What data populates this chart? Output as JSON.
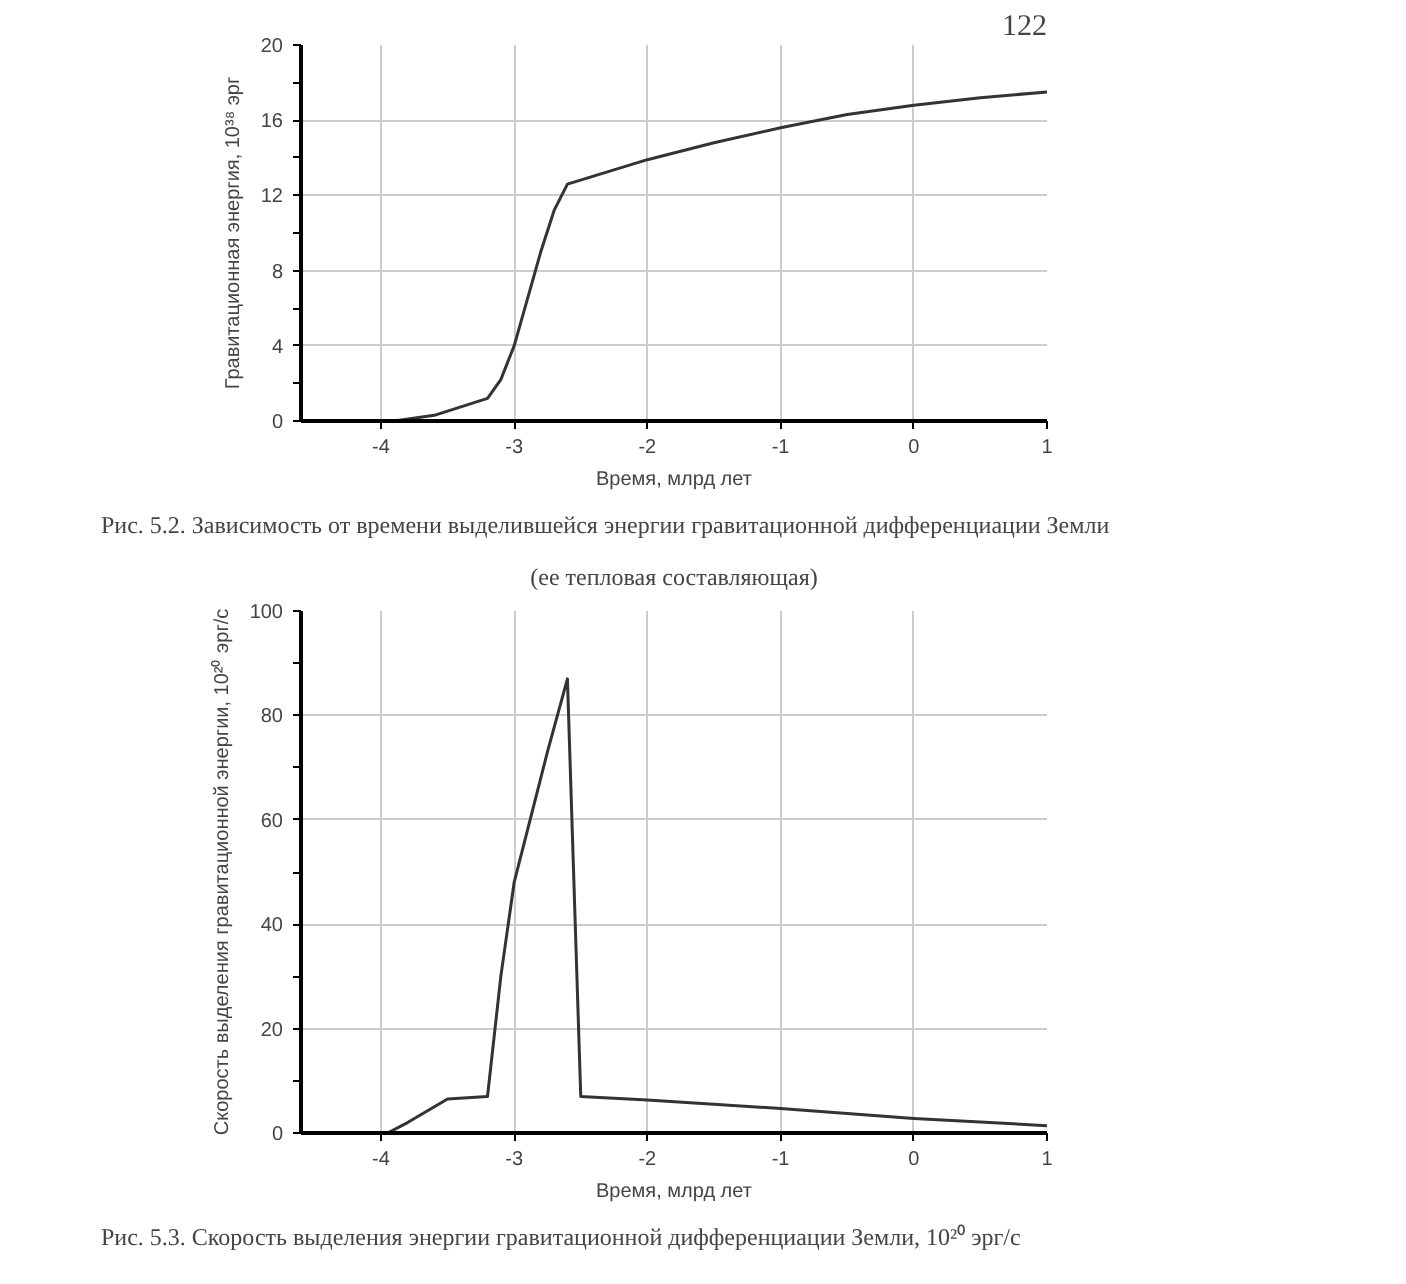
{
  "chart_data": [
    {
      "type": "line",
      "xlabel": "Время, млрд лет",
      "ylabel": "Гравитационная энергия, 10³⁸ эрг",
      "annotations": [
        "122",
        "Рис. 5.2. Зависимость от времени выделившейся энергии гравитационной дифференциации Земли",
        "(ее тепловая составляющая)"
      ],
      "x": [
        -4.0,
        -3.9,
        -3.6,
        -3.2,
        -3.1,
        -3.0,
        -2.9,
        -2.8,
        -2.7,
        -2.6,
        -2.0,
        -1.5,
        -1.0,
        -0.5,
        0.0,
        0.5,
        1.0
      ],
      "series": [
        {
          "color": "#333333",
          "values": [
            0,
            0,
            0.3,
            1.2,
            2.2,
            4,
            6.5,
            9,
            11.2,
            12.6,
            13.9,
            14.8,
            15.6,
            16.3,
            16.8,
            17.2,
            17.5
          ]
        }
      ],
      "xlim": [
        -4.6,
        1
      ],
      "xticks": [
        -4,
        -3,
        -2,
        -1,
        0,
        1
      ],
      "ylim": [
        0,
        20
      ],
      "yticks": [
        0,
        {
          "value": 2,
          "label": null
        },
        4,
        {
          "value": 6,
          "label": null
        },
        8,
        {
          "value": 10,
          "label": null
        },
        12,
        {
          "value": 14,
          "label": null
        },
        16,
        {
          "value": 18,
          "label": null
        },
        20
      ],
      "grid": true,
      "marker": "none",
      "line_style": "solid"
    },
    {
      "type": "line",
      "xlabel": "Время, млрд лет",
      "ylabel": "Скорость выделения гравитационной энергии, 10²⁰ эрг/с",
      "annotations": [
        "Рис. 5.3. Скорость выделения энергии гравитационной дифференциации Земли, 10²⁰ эрг/с"
      ],
      "x": [
        -4.0,
        -3.95,
        -3.8,
        -3.5,
        -3.2,
        -3.1,
        -3.0,
        -2.75,
        -2.6,
        -2.5,
        -2.0,
        -1.0,
        0.0,
        1.0
      ],
      "series": [
        {
          "color": "#333333",
          "values": [
            0,
            0,
            2,
            6.5,
            7,
            30,
            48,
            73,
            87,
            7,
            6.3,
            4.7,
            2.8,
            1.4
          ]
        }
      ],
      "xlim": [
        -4.6,
        1
      ],
      "xticks": [
        -4,
        -3,
        -2,
        -1,
        0,
        1
      ],
      "ylim": [
        0,
        100
      ],
      "yticks": [
        0,
        {
          "value": 10,
          "label": null
        },
        20,
        {
          "value": 30,
          "label": null
        },
        40,
        {
          "value": 50,
          "label": null
        },
        60,
        {
          "value": 70,
          "label": null
        },
        80,
        {
          "value": 90,
          "label": null
        },
        100
      ],
      "grid": true,
      "marker": "none",
      "line_style": "solid"
    }
  ]
}
